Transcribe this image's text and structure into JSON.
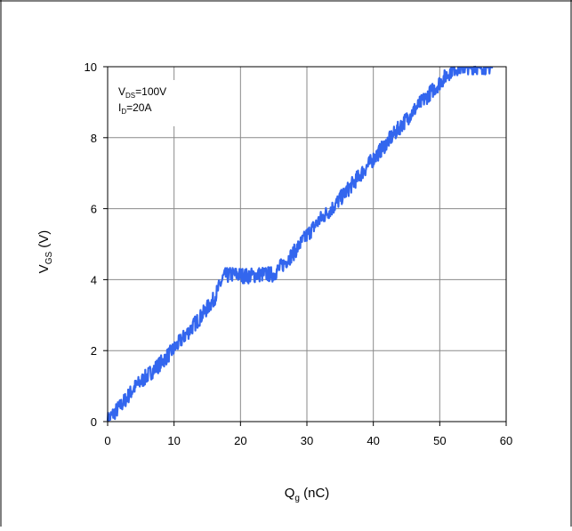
{
  "chart_data": {
    "type": "line",
    "xlabel_main": "Q",
    "xlabel_sub": "g",
    "xlabel_unit": " (nC)",
    "ylabel_main": "V",
    "ylabel_sub": "GS",
    "ylabel_unit": " (V)",
    "xlim": [
      0,
      60
    ],
    "ylim": [
      0,
      10
    ],
    "xticks": [
      0,
      10,
      20,
      30,
      40,
      50,
      60
    ],
    "yticks": [
      0,
      2,
      4,
      6,
      8,
      10
    ],
    "grid": true,
    "annotation": {
      "line1_main": "V",
      "line1_sub": "DS",
      "line1_rest": "=100V",
      "line2_main": "I",
      "line2_sub": "D",
      "line2_rest": "=20A"
    },
    "series": [
      {
        "color": "#3366ee",
        "x": [
          0,
          2,
          4,
          6,
          8,
          10,
          12,
          14,
          16,
          17.5,
          19,
          21,
          23,
          25,
          26,
          28,
          30,
          32,
          34,
          36,
          38,
          40,
          42,
          44,
          46,
          48,
          50,
          52,
          54,
          55.5,
          58
        ],
        "y": [
          0.05,
          0.45,
          0.95,
          1.3,
          1.65,
          2.05,
          2.5,
          2.95,
          3.45,
          4.1,
          4.15,
          4.1,
          4.15,
          4.15,
          4.35,
          4.75,
          5.25,
          5.7,
          6.05,
          6.5,
          6.95,
          7.4,
          7.85,
          8.3,
          8.75,
          9.15,
          9.55,
          9.95,
          10.0,
          10.0,
          10.0
        ],
        "noise": 0.22
      }
    ]
  }
}
